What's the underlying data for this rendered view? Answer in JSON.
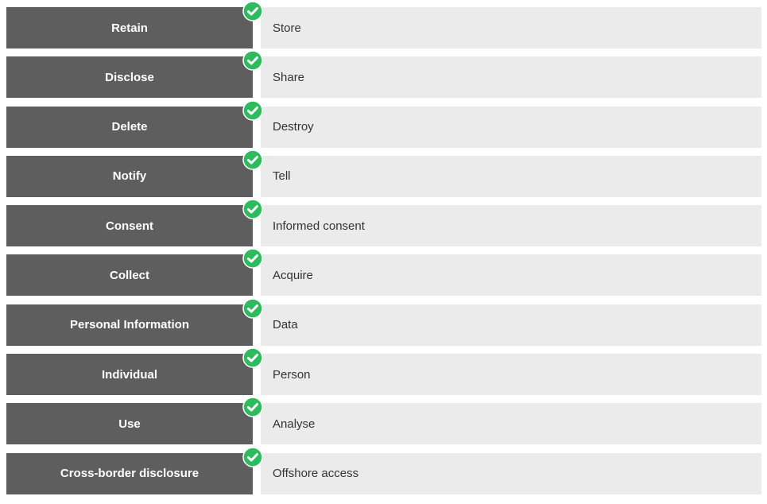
{
  "colors": {
    "term_background": "#5f5e5e",
    "match_background": "#ebebeb",
    "check_green": "#2dbb5d"
  },
  "icons": {
    "status": "check-circle-icon"
  },
  "pairs": [
    {
      "term": "Retain",
      "match": "Store"
    },
    {
      "term": "Disclose",
      "match": "Share"
    },
    {
      "term": "Delete",
      "match": "Destroy"
    },
    {
      "term": "Notify",
      "match": "Tell"
    },
    {
      "term": "Consent",
      "match": "Informed consent"
    },
    {
      "term": "Collect",
      "match": "Acquire"
    },
    {
      "term": "Personal Information",
      "match": "Data"
    },
    {
      "term": "Individual",
      "match": "Person"
    },
    {
      "term": "Use",
      "match": "Analyse"
    },
    {
      "term": "Cross-border disclosure",
      "match": "Offshore access"
    }
  ]
}
